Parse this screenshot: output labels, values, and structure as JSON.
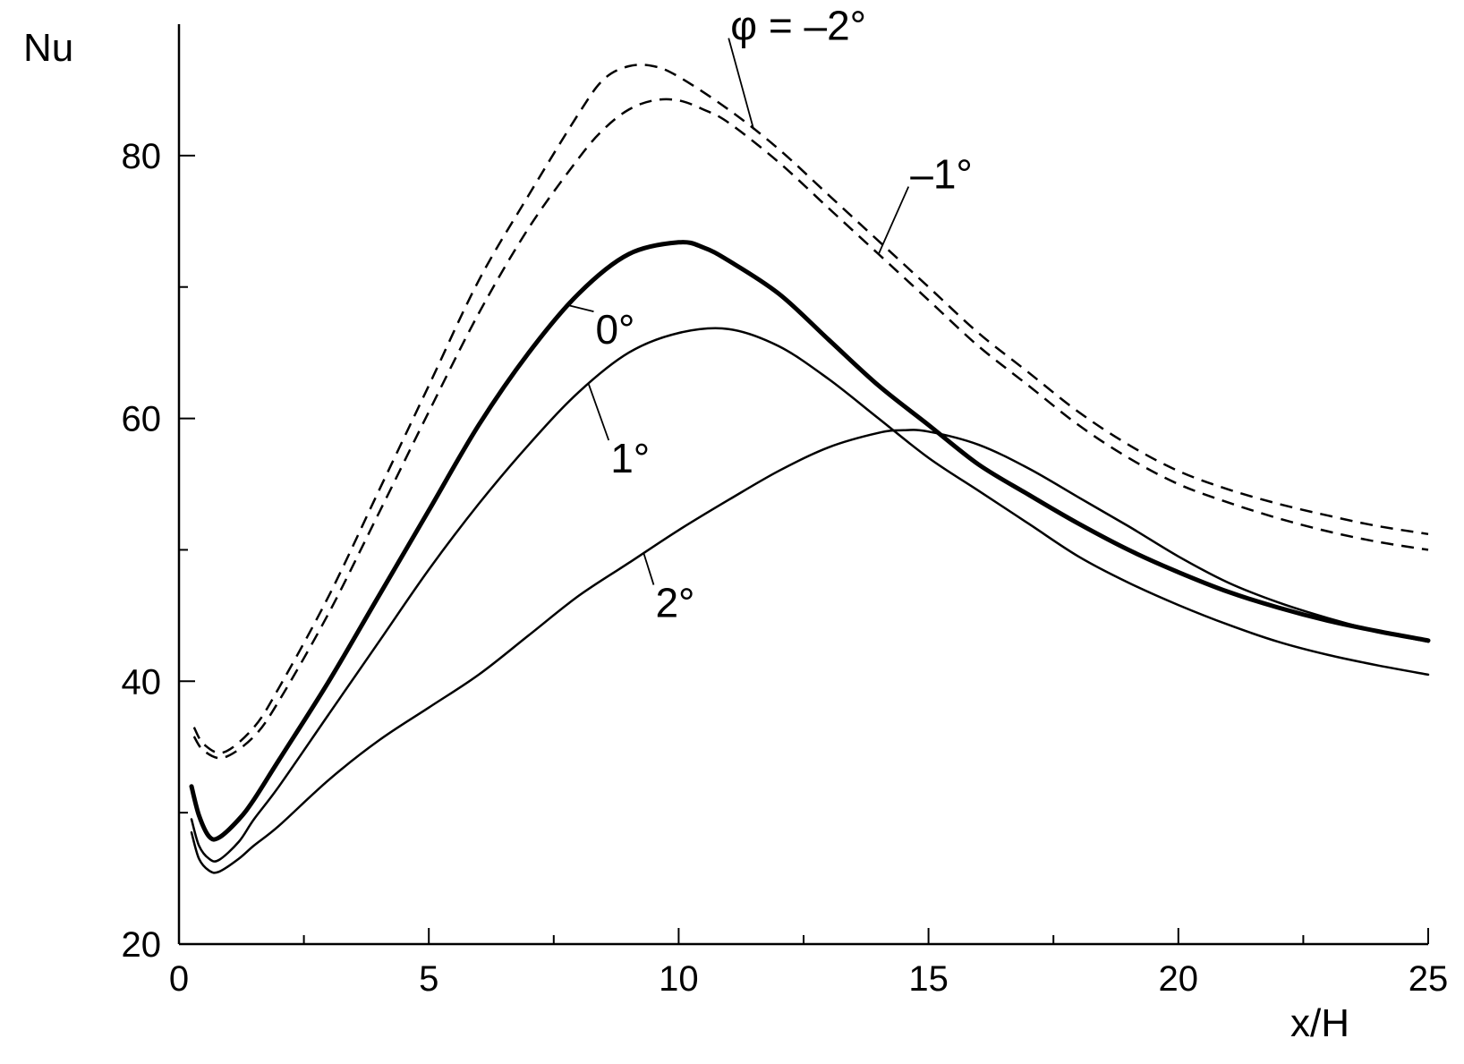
{
  "chart_data": {
    "type": "line",
    "xlabel": "x/H",
    "ylabel": "Nu",
    "xlim": [
      0,
      25
    ],
    "ylim": [
      20,
      90
    ],
    "x_ticks": [
      0,
      5,
      10,
      15,
      20,
      25
    ],
    "y_ticks": [
      20,
      40,
      60,
      80
    ],
    "grid": false,
    "series": [
      {
        "name": "φ = –2°",
        "style": "dashed",
        "color": "#000000",
        "points": [
          [
            0.3,
            36.5
          ],
          [
            0.5,
            35.2
          ],
          [
            0.9,
            34.6
          ],
          [
            1.5,
            36.5
          ],
          [
            2,
            39.5
          ],
          [
            3,
            46.5
          ],
          [
            4,
            54.5
          ],
          [
            5,
            62.5
          ],
          [
            6,
            70.5
          ],
          [
            7,
            77
          ],
          [
            8,
            83.2
          ],
          [
            8.5,
            85.8
          ],
          [
            9,
            86.8
          ],
          [
            9.5,
            86.8
          ],
          [
            10,
            86
          ],
          [
            11,
            83.5
          ],
          [
            12,
            80.5
          ],
          [
            13,
            77
          ],
          [
            14,
            73.5
          ],
          [
            15,
            70
          ],
          [
            16,
            66.5
          ],
          [
            17,
            63.5
          ],
          [
            18,
            60.5
          ],
          [
            19,
            58
          ],
          [
            20,
            56
          ],
          [
            21,
            54.6
          ],
          [
            22,
            53.5
          ],
          [
            23,
            52.6
          ],
          [
            24,
            51.8
          ],
          [
            25,
            51.2
          ]
        ]
      },
      {
        "name": "–1°",
        "style": "dashed",
        "color": "#000000",
        "points": [
          [
            0.3,
            35.8
          ],
          [
            0.5,
            34.7
          ],
          [
            0.9,
            34.2
          ],
          [
            1.5,
            35.8
          ],
          [
            2,
            38.5
          ],
          [
            3,
            45.2
          ],
          [
            4,
            52.8
          ],
          [
            5,
            60.5
          ],
          [
            6,
            68
          ],
          [
            7,
            74.5
          ],
          [
            8,
            79.8
          ],
          [
            8.5,
            82
          ],
          [
            9,
            83.5
          ],
          [
            9.5,
            84.2
          ],
          [
            10,
            84.2
          ],
          [
            10.5,
            83.5
          ],
          [
            11,
            82.5
          ],
          [
            12,
            79.5
          ],
          [
            13,
            76
          ],
          [
            14,
            72.5
          ],
          [
            15,
            69
          ],
          [
            16,
            65.5
          ],
          [
            17,
            62.5
          ],
          [
            18,
            59.5
          ],
          [
            19,
            57
          ],
          [
            20,
            55
          ],
          [
            21,
            53.6
          ],
          [
            22,
            52.4
          ],
          [
            23,
            51.4
          ],
          [
            24,
            50.6
          ],
          [
            25,
            50
          ]
        ]
      },
      {
        "name": "0°",
        "style": "solid-bold",
        "color": "#000000",
        "points": [
          [
            0.25,
            32
          ],
          [
            0.4,
            29.8
          ],
          [
            0.6,
            28.2
          ],
          [
            0.8,
            28.1
          ],
          [
            1.2,
            29.5
          ],
          [
            1.5,
            31
          ],
          [
            2,
            34
          ],
          [
            3,
            40
          ],
          [
            4,
            46.5
          ],
          [
            5,
            53
          ],
          [
            6,
            59.5
          ],
          [
            7,
            65
          ],
          [
            8,
            69.5
          ],
          [
            9,
            72.5
          ],
          [
            10,
            73.4
          ],
          [
            10.5,
            73
          ],
          [
            11,
            72
          ],
          [
            12,
            69.5
          ],
          [
            13,
            66
          ],
          [
            14,
            62.5
          ],
          [
            15,
            59.5
          ],
          [
            16,
            56.5
          ],
          [
            17,
            54.2
          ],
          [
            18,
            52
          ],
          [
            19,
            50
          ],
          [
            20,
            48.3
          ],
          [
            21,
            46.8
          ],
          [
            22,
            45.6
          ],
          [
            23,
            44.6
          ],
          [
            24,
            43.8
          ],
          [
            25,
            43.1
          ]
        ]
      },
      {
        "name": "1°",
        "style": "solid",
        "color": "#000000",
        "points": [
          [
            0.25,
            29.5
          ],
          [
            0.4,
            27.5
          ],
          [
            0.6,
            26.5
          ],
          [
            0.8,
            26.4
          ],
          [
            1.2,
            27.8
          ],
          [
            1.5,
            29.5
          ],
          [
            2,
            32
          ],
          [
            3,
            37.5
          ],
          [
            4,
            43
          ],
          [
            5,
            48.5
          ],
          [
            6,
            53.5
          ],
          [
            7,
            58
          ],
          [
            8,
            62
          ],
          [
            9,
            65
          ],
          [
            10,
            66.5
          ],
          [
            11,
            66.8
          ],
          [
            12,
            65.5
          ],
          [
            13,
            63
          ],
          [
            14,
            60
          ],
          [
            15,
            57
          ],
          [
            16,
            54.5
          ],
          [
            17,
            52
          ],
          [
            18,
            49.5
          ],
          [
            19,
            47.5
          ],
          [
            20,
            45.8
          ],
          [
            21,
            44.3
          ],
          [
            22,
            43
          ],
          [
            23,
            42
          ],
          [
            24,
            41.2
          ],
          [
            25,
            40.5
          ]
        ]
      },
      {
        "name": "2°",
        "style": "solid",
        "color": "#000000",
        "points": [
          [
            0.25,
            28.5
          ],
          [
            0.4,
            26.5
          ],
          [
            0.6,
            25.6
          ],
          [
            0.8,
            25.5
          ],
          [
            1.2,
            26.5
          ],
          [
            1.5,
            27.5
          ],
          [
            2,
            29
          ],
          [
            3,
            32.5
          ],
          [
            4,
            35.5
          ],
          [
            5,
            38
          ],
          [
            6,
            40.5
          ],
          [
            7,
            43.5
          ],
          [
            8,
            46.5
          ],
          [
            9,
            49
          ],
          [
            10,
            51.5
          ],
          [
            11,
            53.8
          ],
          [
            12,
            56
          ],
          [
            13,
            57.8
          ],
          [
            14,
            58.9
          ],
          [
            14.5,
            59.1
          ],
          [
            15,
            59
          ],
          [
            16,
            58
          ],
          [
            17,
            56.2
          ],
          [
            18,
            54
          ],
          [
            19,
            51.8
          ],
          [
            20,
            49.5
          ],
          [
            21,
            47.5
          ],
          [
            22,
            46
          ],
          [
            23,
            44.8
          ],
          [
            24,
            43.8
          ],
          [
            25,
            43
          ]
        ]
      }
    ],
    "annotations": [
      {
        "text": "φ = –2°",
        "series": 0,
        "at_x": 11.5,
        "label_at": [
          11,
          88.8
        ]
      },
      {
        "text": "–1°",
        "series": 1,
        "at_x": 14,
        "label_at": [
          14.6,
          77.5
        ]
      },
      {
        "text": "0°",
        "series": 2,
        "at_x": 7.8,
        "label_at": [
          8.3,
          68
        ]
      },
      {
        "text": "1°",
        "series": 3,
        "at_x": 8.2,
        "label_at": [
          8.6,
          58.2
        ]
      },
      {
        "text": "2°",
        "series": 4,
        "at_x": 9.3,
        "label_at": [
          9.5,
          47.2
        ]
      }
    ]
  }
}
